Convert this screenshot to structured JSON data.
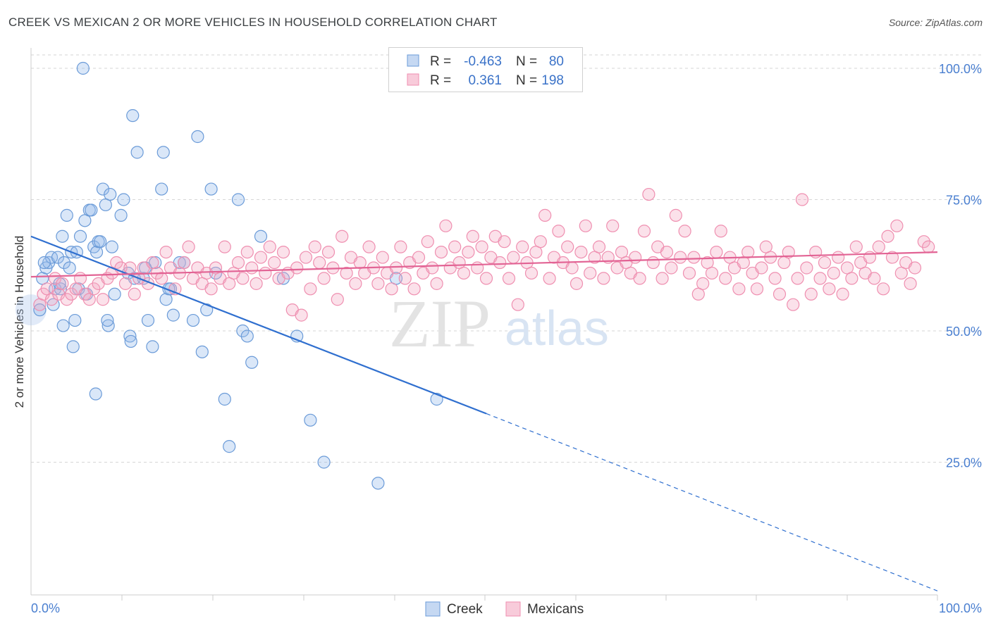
{
  "title": "CREEK VS MEXICAN 2 OR MORE VEHICLES IN HOUSEHOLD CORRELATION CHART",
  "source": "Source: ZipAtlas.com",
  "watermark": {
    "zip": "ZIP",
    "atlas": "atlas"
  },
  "legend": {
    "rows": [
      {
        "r_label": "R =",
        "r_value": "-0.463",
        "n_label": "N =",
        "n_value": "80",
        "color": "#6b9bd8"
      },
      {
        "r_label": "R =",
        "r_value": "0.361",
        "n_label": "N =",
        "n_value": "198",
        "color": "#ef8fb0"
      }
    ]
  },
  "bottom_legend": [
    {
      "label": "Creek",
      "color": "#6b9bd8"
    },
    {
      "label": "Mexicans",
      "color": "#ef8fb0"
    }
  ],
  "chart_data": {
    "type": "scatter",
    "title": "CREEK VS MEXICAN 2 OR MORE VEHICLES IN HOUSEHOLD CORRELATION CHART",
    "xlabel": "",
    "ylabel": "2 or more Vehicles in Household",
    "xlim": [
      0,
      100
    ],
    "ylim": [
      0,
      102
    ],
    "x_tick_labels": [
      "0.0%",
      "100.0%"
    ],
    "y_tick_labels": [
      "25.0%",
      "50.0%",
      "75.0%",
      "100.0%"
    ],
    "y_ticks": [
      25,
      50,
      75,
      100
    ],
    "grid": "horizontal dashed",
    "legend_position": "top-center",
    "series": [
      {
        "name": "Creek",
        "color": "#6b9bd8",
        "line_color": "#2f6fcf",
        "trend": {
          "x_start": 0,
          "y_start": 68.0,
          "x_solid_end": 50,
          "x_end": 100,
          "y_end": 0.5
        },
        "points": [
          [
            0.5,
            54
          ],
          [
            0.8,
            60
          ],
          [
            1.2,
            62
          ],
          [
            1.5,
            63
          ],
          [
            1.8,
            64
          ],
          [
            2.0,
            55
          ],
          [
            2.2,
            58
          ],
          [
            2.5,
            64
          ],
          [
            2.8,
            58
          ],
          [
            3.0,
            68
          ],
          [
            3.2,
            63
          ],
          [
            3.5,
            72
          ],
          [
            3.8,
            62
          ],
          [
            4.0,
            65
          ],
          [
            4.2,
            47
          ],
          [
            4.4,
            52
          ],
          [
            4.6,
            65
          ],
          [
            4.8,
            58
          ],
          [
            5.0,
            68
          ],
          [
            5.3,
            100
          ],
          [
            5.5,
            71
          ],
          [
            5.7,
            57
          ],
          [
            6.0,
            73
          ],
          [
            6.2,
            73
          ],
          [
            6.5,
            66
          ],
          [
            6.8,
            65
          ],
          [
            7.0,
            67
          ],
          [
            7.2,
            67
          ],
          [
            7.5,
            77
          ],
          [
            7.8,
            74
          ],
          [
            8.1,
            51
          ],
          [
            8.3,
            76
          ],
          [
            8.5,
            66
          ],
          [
            8.8,
            57
          ],
          [
            9.5,
            72
          ],
          [
            9.8,
            75
          ],
          [
            10.3,
            61
          ],
          [
            10.5,
            49
          ],
          [
            10.6,
            48
          ],
          [
            10.8,
            91
          ],
          [
            11.3,
            84
          ],
          [
            12.0,
            60
          ],
          [
            12.5,
            52
          ],
          [
            13.0,
            47
          ],
          [
            13.3,
            63
          ],
          [
            14.0,
            77
          ],
          [
            14.2,
            84
          ],
          [
            14.5,
            56
          ],
          [
            15.0,
            58
          ],
          [
            15.3,
            53
          ],
          [
            16.0,
            63
          ],
          [
            16.5,
            63
          ],
          [
            17.5,
            52
          ],
          [
            18.0,
            87
          ],
          [
            18.5,
            46
          ],
          [
            19.5,
            77
          ],
          [
            20.0,
            61
          ],
          [
            21.0,
            37
          ],
          [
            21.5,
            28
          ],
          [
            22.5,
            75
          ],
          [
            23.0,
            50
          ],
          [
            23.5,
            49
          ],
          [
            24.0,
            44
          ],
          [
            25.0,
            68
          ],
          [
            27.5,
            60
          ],
          [
            29.0,
            49
          ],
          [
            30.5,
            33
          ],
          [
            32.0,
            25
          ],
          [
            38.0,
            21
          ],
          [
            40.0,
            60
          ],
          [
            44.5,
            37
          ],
          [
            1.0,
            63
          ],
          [
            2.7,
            59
          ],
          [
            3.1,
            51
          ],
          [
            6.7,
            38
          ],
          [
            8.0,
            52
          ],
          [
            12.2,
            62
          ],
          [
            14.8,
            58
          ],
          [
            19.0,
            54
          ],
          [
            11.0,
            60
          ]
        ]
      },
      {
        "name": "Mexicans",
        "color": "#ef8fb0",
        "line_color": "#e26394",
        "trend": {
          "x_start": 0,
          "y_start": 60.3,
          "x_solid_end": 100,
          "x_end": 100,
          "y_end": 65.0
        },
        "points": [
          [
            0.5,
            55
          ],
          [
            0.9,
            57
          ],
          [
            1.3,
            58
          ],
          [
            1.8,
            56
          ],
          [
            2.2,
            60
          ],
          [
            2.6,
            57
          ],
          [
            3.0,
            59
          ],
          [
            3.5,
            56
          ],
          [
            4.0,
            57
          ],
          [
            4.5,
            58
          ],
          [
            5.0,
            60
          ],
          [
            5.5,
            57
          ],
          [
            6.0,
            56
          ],
          [
            6.5,
            58
          ],
          [
            7.0,
            59
          ],
          [
            7.5,
            56
          ],
          [
            8.0,
            60
          ],
          [
            8.5,
            61
          ],
          [
            9.0,
            63
          ],
          [
            9.5,
            62
          ],
          [
            10.0,
            59
          ],
          [
            10.5,
            62
          ],
          [
            11.0,
            57
          ],
          [
            11.5,
            60
          ],
          [
            12.0,
            62
          ],
          [
            12.5,
            59
          ],
          [
            13.0,
            63
          ],
          [
            13.5,
            61
          ],
          [
            14.0,
            60
          ],
          [
            14.5,
            65
          ],
          [
            15.0,
            62
          ],
          [
            15.5,
            58
          ],
          [
            16.0,
            61
          ],
          [
            16.5,
            63
          ],
          [
            17.0,
            66
          ],
          [
            17.5,
            60
          ],
          [
            18.0,
            62
          ],
          [
            18.5,
            59
          ],
          [
            19.0,
            61
          ],
          [
            19.5,
            58
          ],
          [
            20.0,
            62
          ],
          [
            20.5,
            60
          ],
          [
            21.0,
            66
          ],
          [
            21.5,
            59
          ],
          [
            22.0,
            61
          ],
          [
            22.5,
            63
          ],
          [
            23.0,
            60
          ],
          [
            23.5,
            65
          ],
          [
            24.0,
            62
          ],
          [
            24.5,
            59
          ],
          [
            25.0,
            64
          ],
          [
            25.5,
            61
          ],
          [
            26.0,
            66
          ],
          [
            26.5,
            63
          ],
          [
            27.0,
            60
          ],
          [
            27.5,
            65
          ],
          [
            28.0,
            61
          ],
          [
            28.5,
            54
          ],
          [
            29.0,
            62
          ],
          [
            29.5,
            53
          ],
          [
            30.0,
            64
          ],
          [
            30.5,
            58
          ],
          [
            31.0,
            66
          ],
          [
            31.5,
            63
          ],
          [
            32.0,
            60
          ],
          [
            32.5,
            65
          ],
          [
            33.0,
            62
          ],
          [
            33.5,
            56
          ],
          [
            34.0,
            68
          ],
          [
            34.5,
            61
          ],
          [
            35.0,
            64
          ],
          [
            35.5,
            59
          ],
          [
            36.0,
            63
          ],
          [
            36.5,
            61
          ],
          [
            37.0,
            66
          ],
          [
            37.5,
            62
          ],
          [
            38.0,
            59
          ],
          [
            38.5,
            64
          ],
          [
            39.0,
            61
          ],
          [
            39.5,
            58
          ],
          [
            40.0,
            62
          ],
          [
            40.5,
            66
          ],
          [
            41.0,
            60
          ],
          [
            41.5,
            63
          ],
          [
            42.0,
            58
          ],
          [
            42.5,
            64
          ],
          [
            43.0,
            61
          ],
          [
            43.5,
            67
          ],
          [
            44.0,
            62
          ],
          [
            44.5,
            59
          ],
          [
            45.0,
            65
          ],
          [
            45.5,
            70
          ],
          [
            46.0,
            62
          ],
          [
            46.5,
            66
          ],
          [
            47.0,
            63
          ],
          [
            47.5,
            61
          ],
          [
            48.0,
            65
          ],
          [
            48.5,
            68
          ],
          [
            49.0,
            62
          ],
          [
            49.5,
            66
          ],
          [
            50.0,
            60
          ],
          [
            50.5,
            64
          ],
          [
            51.0,
            68
          ],
          [
            51.5,
            63
          ],
          [
            52.0,
            67
          ],
          [
            52.5,
            60
          ],
          [
            53.0,
            64
          ],
          [
            53.5,
            55
          ],
          [
            54.0,
            66
          ],
          [
            54.5,
            63
          ],
          [
            55.0,
            61
          ],
          [
            55.5,
            65
          ],
          [
            56.0,
            67
          ],
          [
            56.5,
            72
          ],
          [
            57.0,
            60
          ],
          [
            57.5,
            64
          ],
          [
            58.0,
            69
          ],
          [
            58.5,
            63
          ],
          [
            59.0,
            66
          ],
          [
            59.5,
            62
          ],
          [
            60.0,
            59
          ],
          [
            60.5,
            65
          ],
          [
            61.0,
            70
          ],
          [
            61.5,
            61
          ],
          [
            62.0,
            64
          ],
          [
            62.5,
            66
          ],
          [
            63.0,
            60
          ],
          [
            63.5,
            64
          ],
          [
            64.0,
            70
          ],
          [
            64.5,
            62
          ],
          [
            65.0,
            65
          ],
          [
            65.5,
            63
          ],
          [
            66.0,
            61
          ],
          [
            66.5,
            64
          ],
          [
            67.0,
            60
          ],
          [
            67.5,
            69
          ],
          [
            68.0,
            76
          ],
          [
            68.5,
            63
          ],
          [
            69.0,
            66
          ],
          [
            69.5,
            60
          ],
          [
            70.0,
            65
          ],
          [
            70.5,
            62
          ],
          [
            71.0,
            72
          ],
          [
            71.5,
            64
          ],
          [
            72.0,
            69
          ],
          [
            72.5,
            61
          ],
          [
            73.0,
            64
          ],
          [
            73.5,
            57
          ],
          [
            74.0,
            59
          ],
          [
            74.5,
            63
          ],
          [
            75.0,
            61
          ],
          [
            75.5,
            65
          ],
          [
            76.0,
            69
          ],
          [
            76.5,
            60
          ],
          [
            77.0,
            64
          ],
          [
            77.5,
            62
          ],
          [
            78.0,
            58
          ],
          [
            78.5,
            63
          ],
          [
            79.0,
            65
          ],
          [
            79.5,
            61
          ],
          [
            80.0,
            58
          ],
          [
            80.5,
            62
          ],
          [
            81.0,
            66
          ],
          [
            81.5,
            64
          ],
          [
            82.0,
            60
          ],
          [
            82.5,
            57
          ],
          [
            83.0,
            63
          ],
          [
            83.5,
            65
          ],
          [
            84.0,
            55
          ],
          [
            84.5,
            60
          ],
          [
            85.0,
            75
          ],
          [
            85.5,
            62
          ],
          [
            86.0,
            57
          ],
          [
            86.5,
            65
          ],
          [
            87.0,
            60
          ],
          [
            87.5,
            63
          ],
          [
            88.0,
            58
          ],
          [
            88.5,
            61
          ],
          [
            89.0,
            64
          ],
          [
            89.5,
            57
          ],
          [
            90.0,
            62
          ],
          [
            90.5,
            60
          ],
          [
            91.0,
            66
          ],
          [
            91.5,
            63
          ],
          [
            92.0,
            61
          ],
          [
            92.5,
            64
          ],
          [
            93.0,
            60
          ],
          [
            93.5,
            66
          ],
          [
            94.0,
            58
          ],
          [
            94.5,
            68
          ],
          [
            95.0,
            64
          ],
          [
            95.5,
            70
          ],
          [
            96.0,
            61
          ],
          [
            96.5,
            63
          ],
          [
            97.0,
            59
          ],
          [
            97.5,
            62
          ],
          [
            98.5,
            67
          ],
          [
            99.0,
            66
          ]
        ]
      }
    ]
  }
}
